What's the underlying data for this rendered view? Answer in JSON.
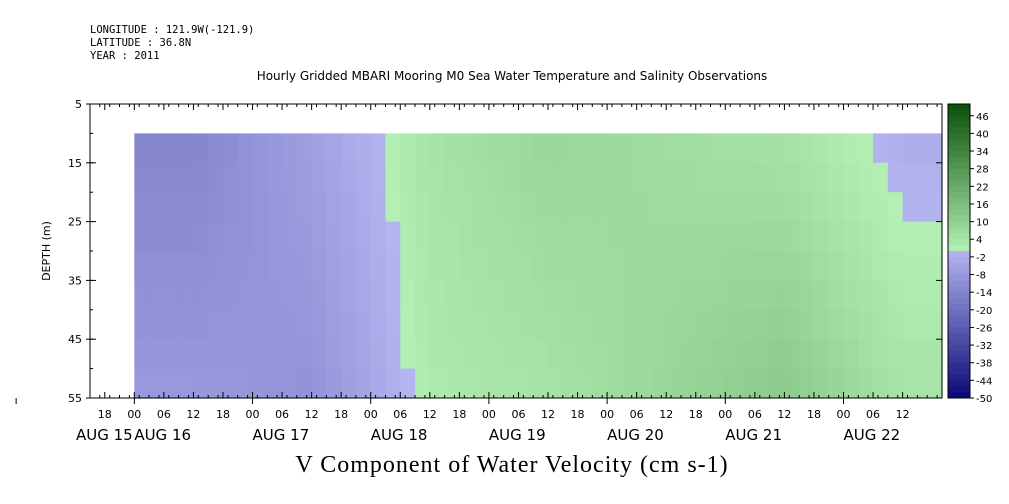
{
  "header": {
    "longitude": "LONGITUDE : 121.9W(-121.9)",
    "latitude": "LATITUDE : 36.8N",
    "year": "YEAR : 2011"
  },
  "chart_data": {
    "type": "heatmap",
    "title": "Hourly Gridded MBARI Mooring M0 Sea Water Temperature and Salinity Observations",
    "xlabel": "V Component of Water Velocity (cm s-1)",
    "ylabel": "DEPTH (m)",
    "y_axis": {
      "range": [
        5,
        55
      ],
      "inverted": true,
      "ticks": [
        "5",
        "15",
        "25",
        "35",
        "45",
        "55"
      ],
      "data_depth_range": [
        10,
        55
      ]
    },
    "x_axis": {
      "hour_ticks": [
        "18",
        "00",
        "06",
        "12",
        "18",
        "00",
        "06",
        "12",
        "18",
        "00",
        "06",
        "12",
        "18",
        "00",
        "06",
        "12",
        "18",
        "00",
        "06",
        "12",
        "18",
        "00",
        "06",
        "12",
        "18",
        "00",
        "06",
        "12"
      ],
      "day_labels": [
        "AUG 15",
        "AUG 16",
        "AUG 17",
        "AUG 18",
        "AUG 19",
        "AUG 20",
        "AUG 21",
        "AUG 22"
      ],
      "range_start": "2011-08-15T15:00",
      "range_end": "2011-08-22T20:00",
      "data_start": "2011-08-16T00:00"
    },
    "colorbar": {
      "range": [
        -50,
        50
      ],
      "step": 2,
      "tick_labels": [
        "46",
        "40",
        "34",
        "28",
        "22",
        "16",
        "10",
        "4",
        "-2",
        "-8",
        "-14",
        "-20",
        "-26",
        "-32",
        "-38",
        "-44",
        "-50"
      ]
    },
    "bands": [
      {
        "day": "2011-08-16",
        "surface": -14,
        "deep": -8
      },
      {
        "day": "2011-08-17",
        "surface": -6,
        "deep": -10
      },
      {
        "day": "2011-08-18",
        "surface": 4,
        "deep": 2
      },
      {
        "day": "2011-08-19",
        "surface": 8,
        "deep": 4
      },
      {
        "day": "2011-08-20",
        "surface": 6,
        "deep": 8
      },
      {
        "day": "2011-08-21",
        "surface": 4,
        "deep": 12
      },
      {
        "day": "2011-08-22",
        "surface": -2,
        "deep": 4
      }
    ]
  },
  "colors": {
    "negative_strong": "#0a0a78",
    "negative_light": "#b4b4f0",
    "positive_light": "#b4f0b4",
    "positive_strong": "#0a500a"
  }
}
